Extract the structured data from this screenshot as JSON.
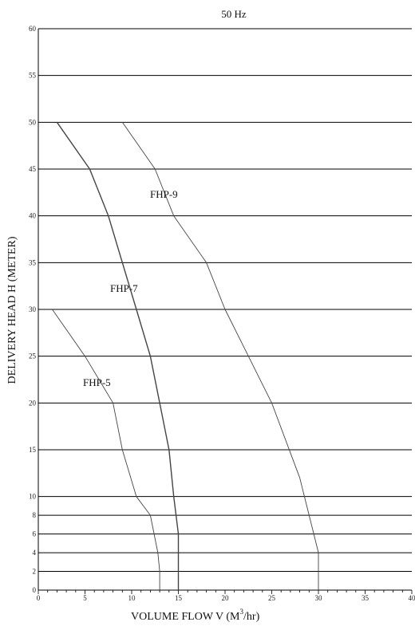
{
  "chart_data": {
    "type": "line",
    "title": "50 Hz",
    "xlabel_main": "VOLUME FLOW V (M",
    "xlabel_sup": "3",
    "xlabel_tail": "/hr)",
    "ylabel": "DELIVERY HEAD H (METER)",
    "xlim": [
      0,
      40
    ],
    "ylim": [
      0,
      60
    ],
    "x_ticks": [
      0,
      5,
      10,
      15,
      20,
      25,
      30,
      35,
      40
    ],
    "y_ticks": [
      0,
      2,
      4,
      6,
      8,
      10,
      15,
      20,
      25,
      30,
      35,
      40,
      45,
      50,
      55,
      60
    ],
    "grid": true,
    "series": [
      {
        "name": "FHP-5",
        "x": [
          1.5,
          5,
          8,
          9,
          10.5,
          12,
          12.8,
          13,
          13
        ],
        "y": [
          30,
          25,
          20,
          15,
          10,
          8,
          4,
          2,
          0
        ]
      },
      {
        "name": "FHP-7",
        "x": [
          2,
          5.5,
          7.5,
          9,
          10.5,
          12,
          13,
          14,
          14.5,
          15,
          15,
          15
        ],
        "y": [
          50,
          45,
          40,
          35,
          30,
          25,
          20,
          15,
          10,
          6,
          4,
          0
        ]
      },
      {
        "name": "FHP-9",
        "x": [
          9,
          12.5,
          14.5,
          18,
          20,
          22.5,
          25,
          28,
          29,
          29.5,
          30,
          30
        ],
        "y": [
          50,
          45,
          40,
          35,
          30,
          25,
          20,
          12,
          8,
          6,
          4,
          0
        ]
      }
    ]
  },
  "colors": {
    "background": "#ffffff",
    "grid": "#000000",
    "curve": "#444444"
  }
}
